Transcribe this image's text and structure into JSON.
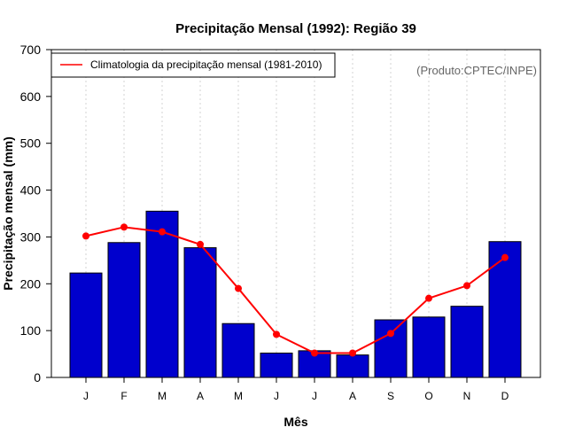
{
  "chart_data": {
    "type": "bar",
    "title": "Precipitação Mensal (1992): Região 39",
    "xlabel": "Mês",
    "ylabel": "Precipitação mensal (mm)",
    "ylim": [
      0,
      700
    ],
    "yticks": [
      0,
      100,
      200,
      300,
      400,
      500,
      600,
      700
    ],
    "categories": [
      "J",
      "F",
      "M",
      "A",
      "M",
      "J",
      "J",
      "A",
      "S",
      "O",
      "N",
      "D"
    ],
    "grid": "vertical dotted",
    "series": [
      {
        "name": "Precipitação mensal (1992)",
        "type": "bar",
        "color": "#0000cd",
        "values": [
          223,
          288,
          355,
          277,
          115,
          52,
          57,
          48,
          123,
          129,
          152,
          290
        ]
      },
      {
        "name": "Climatologia da precipitação mensal (1981-2010)",
        "type": "line",
        "color": "#ff0000",
        "values": [
          302,
          321,
          311,
          284,
          190,
          92,
          52,
          52,
          94,
          169,
          196,
          256
        ]
      }
    ],
    "legend": {
      "position": "top-left",
      "entries": [
        "Climatologia da precipitação mensal (1981-2010)"
      ]
    },
    "source_note": "(Produto:CPTEC/INPE)"
  }
}
